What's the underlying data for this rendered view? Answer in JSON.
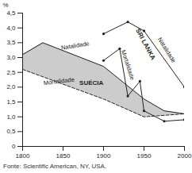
{
  "chart_data": {
    "type": "line",
    "caption": "Fonte: Scientific American, NY, USA.",
    "y_label": "%",
    "xlim": [
      1800,
      2000
    ],
    "xticks": [
      1800,
      1850,
      1900,
      1950,
      2000
    ],
    "ylim": [
      0,
      4.5
    ],
    "yticks": [
      0,
      {
        "value": 0.5,
        "label": "0,5"
      },
      {
        "value": 1,
        "label": "1,0"
      },
      {
        "value": 1.5,
        "label": "1,5"
      },
      {
        "value": 2,
        "label": "2,0"
      },
      {
        "value": 2.5,
        "label": "2,5"
      },
      {
        "value": 3,
        "label": "3,0"
      },
      {
        "value": 3.5,
        "label": "3,5"
      },
      {
        "value": 4,
        "label": "4,0"
      },
      {
        "value": 4.5,
        "label": "4,5"
      }
    ],
    "grid": false,
    "series": [
      {
        "name": "Natalidade",
        "country": "SUÉCIA",
        "color": "#222222",
        "line_style": "solid",
        "marker": "none",
        "x": [
          1800,
          1825,
          1900,
          1950,
          1975,
          2000
        ],
        "values": [
          3.1,
          3.5,
          2.7,
          1.6,
          1.2,
          1.1
        ],
        "label_at": [
          1865,
          3.4
        ]
      },
      {
        "name": "Mortalidade",
        "country": "SUÉCIA",
        "color": "#222222",
        "line_style": "dashed",
        "marker": "none",
        "x": [
          1800,
          1825,
          1900,
          1950,
          1975,
          2000
        ],
        "values": [
          2.6,
          2.35,
          1.6,
          1.0,
          1.05,
          1.1
        ],
        "label_at": [
          1845,
          2.2
        ]
      },
      {
        "name": "Natalidade",
        "country": "SRI LANKA",
        "color": "#222222",
        "line_style": "solid",
        "marker": "circle",
        "x": [
          1900,
          1930,
          1950,
          2000
        ],
        "values": [
          3.8,
          4.2,
          3.9,
          2.0
        ],
        "label_at": [
          1978,
          3.25
        ]
      },
      {
        "name": "Mortalidade",
        "country": "SRI LANKA",
        "color": "#222222",
        "line_style": "solid",
        "marker": "circle",
        "x": [
          1900,
          1920,
          1930,
          1945,
          1950,
          1975,
          2000
        ],
        "values": [
          2.9,
          3.3,
          1.7,
          2.2,
          1.2,
          0.85,
          0.9
        ],
        "label_at": [
          1930,
          2.75
        ]
      }
    ],
    "annotations": [
      {
        "text": "SUÉCIA",
        "x": 1885,
        "y": 2.15,
        "color": "#cccccc"
      },
      {
        "text": "SRI LANKA",
        "x": 1952,
        "y": 3.45
      }
    ]
  }
}
